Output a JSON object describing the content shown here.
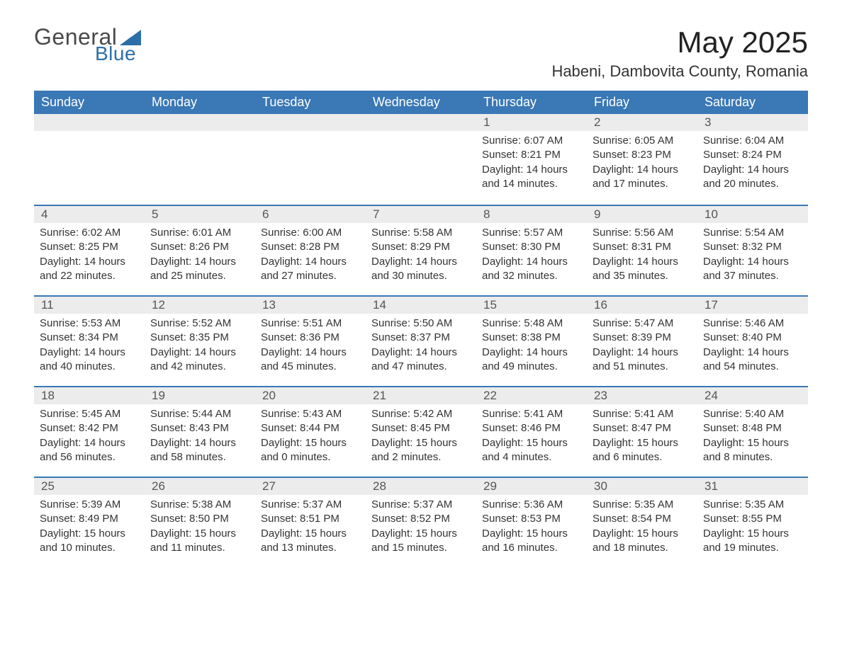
{
  "logo": {
    "general": "General",
    "blue": "Blue"
  },
  "title": "May 2025",
  "location": "Habeni, Dambovita County, Romania",
  "colors": {
    "header_bg": "#3a78b6",
    "header_text": "#ffffff",
    "date_band_bg": "#ececec",
    "text": "#333333",
    "logo_blue": "#2c6fa8"
  },
  "weekdays": [
    "Sunday",
    "Monday",
    "Tuesday",
    "Wednesday",
    "Thursday",
    "Friday",
    "Saturday"
  ],
  "weeks": [
    [
      null,
      null,
      null,
      null,
      {
        "date": "1",
        "sunrise": "Sunrise: 6:07 AM",
        "sunset": "Sunset: 8:21 PM",
        "day1": "Daylight: 14 hours",
        "day2": "and 14 minutes."
      },
      {
        "date": "2",
        "sunrise": "Sunrise: 6:05 AM",
        "sunset": "Sunset: 8:23 PM",
        "day1": "Daylight: 14 hours",
        "day2": "and 17 minutes."
      },
      {
        "date": "3",
        "sunrise": "Sunrise: 6:04 AM",
        "sunset": "Sunset: 8:24 PM",
        "day1": "Daylight: 14 hours",
        "day2": "and 20 minutes."
      }
    ],
    [
      {
        "date": "4",
        "sunrise": "Sunrise: 6:02 AM",
        "sunset": "Sunset: 8:25 PM",
        "day1": "Daylight: 14 hours",
        "day2": "and 22 minutes."
      },
      {
        "date": "5",
        "sunrise": "Sunrise: 6:01 AM",
        "sunset": "Sunset: 8:26 PM",
        "day1": "Daylight: 14 hours",
        "day2": "and 25 minutes."
      },
      {
        "date": "6",
        "sunrise": "Sunrise: 6:00 AM",
        "sunset": "Sunset: 8:28 PM",
        "day1": "Daylight: 14 hours",
        "day2": "and 27 minutes."
      },
      {
        "date": "7",
        "sunrise": "Sunrise: 5:58 AM",
        "sunset": "Sunset: 8:29 PM",
        "day1": "Daylight: 14 hours",
        "day2": "and 30 minutes."
      },
      {
        "date": "8",
        "sunrise": "Sunrise: 5:57 AM",
        "sunset": "Sunset: 8:30 PM",
        "day1": "Daylight: 14 hours",
        "day2": "and 32 minutes."
      },
      {
        "date": "9",
        "sunrise": "Sunrise: 5:56 AM",
        "sunset": "Sunset: 8:31 PM",
        "day1": "Daylight: 14 hours",
        "day2": "and 35 minutes."
      },
      {
        "date": "10",
        "sunrise": "Sunrise: 5:54 AM",
        "sunset": "Sunset: 8:32 PM",
        "day1": "Daylight: 14 hours",
        "day2": "and 37 minutes."
      }
    ],
    [
      {
        "date": "11",
        "sunrise": "Sunrise: 5:53 AM",
        "sunset": "Sunset: 8:34 PM",
        "day1": "Daylight: 14 hours",
        "day2": "and 40 minutes."
      },
      {
        "date": "12",
        "sunrise": "Sunrise: 5:52 AM",
        "sunset": "Sunset: 8:35 PM",
        "day1": "Daylight: 14 hours",
        "day2": "and 42 minutes."
      },
      {
        "date": "13",
        "sunrise": "Sunrise: 5:51 AM",
        "sunset": "Sunset: 8:36 PM",
        "day1": "Daylight: 14 hours",
        "day2": "and 45 minutes."
      },
      {
        "date": "14",
        "sunrise": "Sunrise: 5:50 AM",
        "sunset": "Sunset: 8:37 PM",
        "day1": "Daylight: 14 hours",
        "day2": "and 47 minutes."
      },
      {
        "date": "15",
        "sunrise": "Sunrise: 5:48 AM",
        "sunset": "Sunset: 8:38 PM",
        "day1": "Daylight: 14 hours",
        "day2": "and 49 minutes."
      },
      {
        "date": "16",
        "sunrise": "Sunrise: 5:47 AM",
        "sunset": "Sunset: 8:39 PM",
        "day1": "Daylight: 14 hours",
        "day2": "and 51 minutes."
      },
      {
        "date": "17",
        "sunrise": "Sunrise: 5:46 AM",
        "sunset": "Sunset: 8:40 PM",
        "day1": "Daylight: 14 hours",
        "day2": "and 54 minutes."
      }
    ],
    [
      {
        "date": "18",
        "sunrise": "Sunrise: 5:45 AM",
        "sunset": "Sunset: 8:42 PM",
        "day1": "Daylight: 14 hours",
        "day2": "and 56 minutes."
      },
      {
        "date": "19",
        "sunrise": "Sunrise: 5:44 AM",
        "sunset": "Sunset: 8:43 PM",
        "day1": "Daylight: 14 hours",
        "day2": "and 58 minutes."
      },
      {
        "date": "20",
        "sunrise": "Sunrise: 5:43 AM",
        "sunset": "Sunset: 8:44 PM",
        "day1": "Daylight: 15 hours",
        "day2": "and 0 minutes."
      },
      {
        "date": "21",
        "sunrise": "Sunrise: 5:42 AM",
        "sunset": "Sunset: 8:45 PM",
        "day1": "Daylight: 15 hours",
        "day2": "and 2 minutes."
      },
      {
        "date": "22",
        "sunrise": "Sunrise: 5:41 AM",
        "sunset": "Sunset: 8:46 PM",
        "day1": "Daylight: 15 hours",
        "day2": "and 4 minutes."
      },
      {
        "date": "23",
        "sunrise": "Sunrise: 5:41 AM",
        "sunset": "Sunset: 8:47 PM",
        "day1": "Daylight: 15 hours",
        "day2": "and 6 minutes."
      },
      {
        "date": "24",
        "sunrise": "Sunrise: 5:40 AM",
        "sunset": "Sunset: 8:48 PM",
        "day1": "Daylight: 15 hours",
        "day2": "and 8 minutes."
      }
    ],
    [
      {
        "date": "25",
        "sunrise": "Sunrise: 5:39 AM",
        "sunset": "Sunset: 8:49 PM",
        "day1": "Daylight: 15 hours",
        "day2": "and 10 minutes."
      },
      {
        "date": "26",
        "sunrise": "Sunrise: 5:38 AM",
        "sunset": "Sunset: 8:50 PM",
        "day1": "Daylight: 15 hours",
        "day2": "and 11 minutes."
      },
      {
        "date": "27",
        "sunrise": "Sunrise: 5:37 AM",
        "sunset": "Sunset: 8:51 PM",
        "day1": "Daylight: 15 hours",
        "day2": "and 13 minutes."
      },
      {
        "date": "28",
        "sunrise": "Sunrise: 5:37 AM",
        "sunset": "Sunset: 8:52 PM",
        "day1": "Daylight: 15 hours",
        "day2": "and 15 minutes."
      },
      {
        "date": "29",
        "sunrise": "Sunrise: 5:36 AM",
        "sunset": "Sunset: 8:53 PM",
        "day1": "Daylight: 15 hours",
        "day2": "and 16 minutes."
      },
      {
        "date": "30",
        "sunrise": "Sunrise: 5:35 AM",
        "sunset": "Sunset: 8:54 PM",
        "day1": "Daylight: 15 hours",
        "day2": "and 18 minutes."
      },
      {
        "date": "31",
        "sunrise": "Sunrise: 5:35 AM",
        "sunset": "Sunset: 8:55 PM",
        "day1": "Daylight: 15 hours",
        "day2": "and 19 minutes."
      }
    ]
  ]
}
